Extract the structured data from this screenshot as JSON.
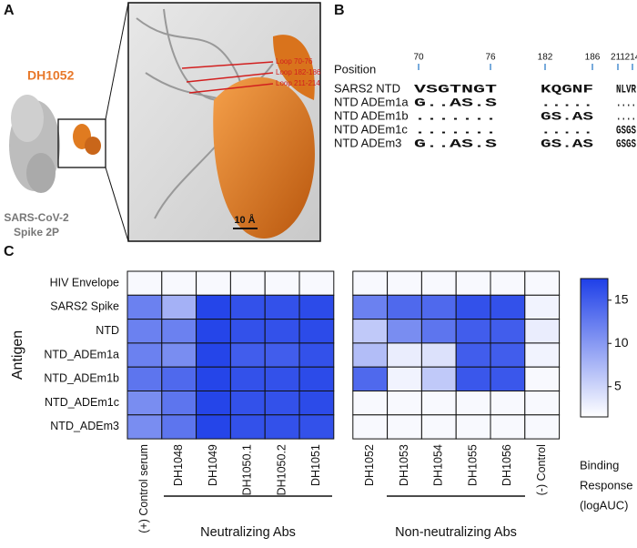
{
  "panel_a": {
    "label": "A",
    "antibody_label": "DH1052",
    "spike_label": [
      "SARS-CoV-2",
      "Spike 2P"
    ],
    "loops": [
      "Loop 70-76",
      "Loop 182-186",
      "Loop 211-214"
    ],
    "scale_bar": "10 Å"
  },
  "panel_b": {
    "label": "B",
    "position_label": "Position",
    "positions": [
      "70",
      "76",
      "182",
      "186",
      "211",
      "214"
    ],
    "rows": [
      {
        "name": "SARS2 NTD",
        "segments": [
          "VSGTNGT",
          "KQGNF",
          "NLVR"
        ]
      },
      {
        "name": "NTD ADEm1a",
        "segments": [
          "G..AS.S",
          ".....",
          "...."
        ]
      },
      {
        "name": "NTD ADEm1b",
        "segments": [
          ".......",
          "GS.AS",
          "...."
        ]
      },
      {
        "name": "NTD ADEm1c",
        "segments": [
          ".......",
          ".....",
          "GSGS"
        ]
      },
      {
        "name": "NTD ADEm3",
        "segments": [
          "G..AS.S",
          "GS.AS",
          "GSGS"
        ]
      }
    ]
  },
  "chart_data": {
    "type": "heatmap",
    "panel_label": "C",
    "y_label": "Antigen",
    "x": [
      "(+) Control serum",
      "DH1048",
      "DH1049",
      "DH1050.1",
      "DH1050.2",
      "DH1051",
      "DH1052",
      "DH1053",
      "DH1054",
      "DH1055",
      "DH1056",
      "(-) Control"
    ],
    "y": [
      "HIV Envelope",
      "SARS2 Spike",
      "NTD",
      "NTD_ADEm1a",
      "NTD_ADEm1b",
      "NTD_ADEm1c",
      "NTD_ADEm3"
    ],
    "values": [
      [
        2,
        2,
        2,
        2,
        2,
        2,
        2,
        2,
        2,
        2,
        2,
        2
      ],
      [
        12,
        8,
        17,
        16,
        16,
        16.5,
        12,
        14,
        14,
        16,
        16,
        2.5
      ],
      [
        12,
        12,
        17,
        16,
        16,
        16.5,
        6,
        11,
        13,
        15,
        15,
        3
      ],
      [
        12,
        11,
        17,
        15,
        15,
        16,
        7,
        3,
        4,
        15,
        15,
        2.5
      ],
      [
        13,
        14,
        17,
        16,
        16,
        16.5,
        14,
        2.5,
        6,
        15.5,
        15.5,
        2
      ],
      [
        11,
        13,
        17,
        16,
        16,
        16.5,
        2,
        2,
        2,
        2,
        2,
        2
      ],
      [
        11,
        13,
        17,
        16,
        16,
        16,
        2,
        2,
        2,
        2,
        2,
        2
      ]
    ],
    "groups": [
      "Neutralizing Abs",
      "Non-neutralizing Abs"
    ],
    "zlim": [
      1.5,
      17.5
    ],
    "zticks": [
      5,
      10,
      15
    ],
    "color_low": "#ffffff",
    "color_high": "#1e3fe8",
    "colorbar_title": [
      "Binding",
      "Response",
      "(logAUC)"
    ]
  }
}
